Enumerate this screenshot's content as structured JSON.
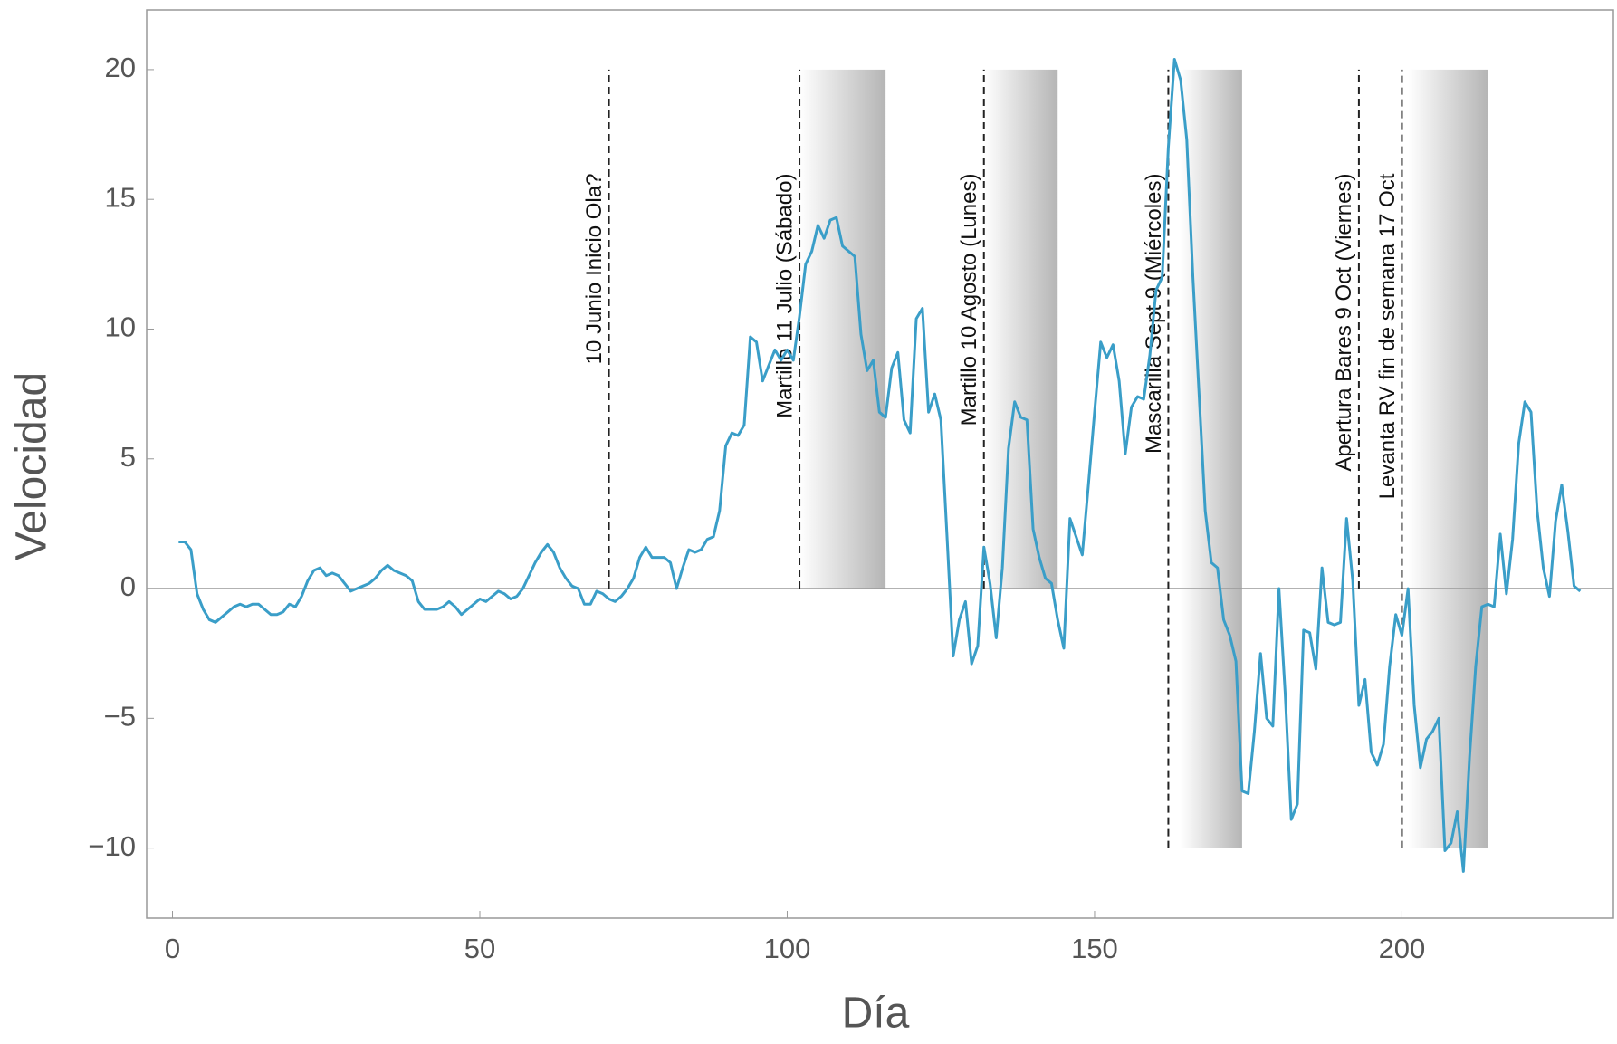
{
  "chart_data": {
    "type": "line",
    "xlabel": "Día",
    "ylabel": "Velocidad",
    "xlim": [
      -4.2,
      234.4
    ],
    "ylim": [
      -12.7,
      22.3
    ],
    "xticks": [
      0,
      50,
      100,
      150,
      200
    ],
    "yticks": [
      {
        "value": -10,
        "label": "−10"
      },
      {
        "value": -5,
        "label": "−5"
      },
      0,
      5,
      10,
      15,
      20
    ],
    "series": [
      {
        "color": "#3a9ec8",
        "x": [
          1,
          2,
          3,
          4,
          5,
          6,
          7,
          8,
          9,
          10,
          11,
          12,
          13,
          14,
          15,
          16,
          17,
          18,
          19,
          20,
          21,
          22,
          23,
          24,
          25,
          26,
          27,
          28,
          29,
          30,
          31,
          32,
          33,
          34,
          35,
          36,
          37,
          38,
          39,
          40,
          41,
          42,
          43,
          44,
          45,
          46,
          47,
          48,
          49,
          50,
          51,
          52,
          53,
          54,
          55,
          56,
          57,
          58,
          59,
          60,
          61,
          62,
          63,
          64,
          65,
          66,
          67,
          68,
          69,
          70,
          71,
          72,
          73,
          74,
          75,
          76,
          77,
          78,
          79,
          80,
          81,
          82,
          83,
          84,
          85,
          86,
          87,
          88,
          89,
          90,
          91,
          92,
          93,
          94,
          95,
          96,
          97,
          98,
          99,
          100,
          101,
          102,
          103,
          104,
          105,
          106,
          107,
          108,
          109,
          110,
          111,
          112,
          113,
          114,
          115,
          116,
          117,
          118,
          119,
          120,
          121,
          122,
          123,
          124,
          125,
          126,
          127,
          128,
          129,
          130,
          131,
          132,
          133,
          134,
          135,
          136,
          137,
          138,
          139,
          140,
          141,
          142,
          143,
          144,
          145,
          146,
          147,
          148,
          149,
          150,
          151,
          152,
          153,
          154,
          155,
          156,
          157,
          158,
          159,
          160,
          161,
          162,
          163,
          164,
          165,
          166,
          167,
          168,
          169,
          170,
          171,
          172,
          173,
          174,
          175,
          176,
          177,
          178,
          179,
          180,
          181,
          182,
          183,
          184,
          185,
          186,
          187,
          188,
          189,
          190,
          191,
          192,
          193,
          194,
          195,
          196,
          197,
          198,
          199,
          200,
          201,
          202,
          203,
          204,
          205,
          206,
          207,
          208,
          209,
          210,
          211,
          212,
          213,
          214,
          215,
          216,
          217,
          218,
          219,
          220,
          221,
          222,
          223,
          224,
          225,
          226,
          227,
          228,
          229
        ],
        "values": [
          1.8,
          1.8,
          1.5,
          -0.2,
          -0.8,
          -1.2,
          -1.3,
          -1.1,
          -0.9,
          -0.7,
          -0.6,
          -0.7,
          -0.6,
          -0.6,
          -0.8,
          -1.0,
          -1.0,
          -0.9,
          -0.6,
          -0.7,
          -0.3,
          0.3,
          0.7,
          0.8,
          0.5,
          0.6,
          0.5,
          0.2,
          -0.1,
          0,
          0.1,
          0.2,
          0.4,
          0.7,
          0.9,
          0.7,
          0.6,
          0.5,
          0.3,
          -0.5,
          -0.8,
          -0.8,
          -0.8,
          -0.7,
          -0.5,
          -0.7,
          -1.0,
          -0.8,
          -0.6,
          -0.4,
          -0.5,
          -0.3,
          -0.1,
          -0.2,
          -0.4,
          -0.3,
          0,
          0.5,
          1.0,
          1.4,
          1.7,
          1.4,
          0.8,
          0.4,
          0.1,
          0,
          -0.6,
          -0.6,
          -0.1,
          -0.2,
          -0.4,
          -0.5,
          -0.3,
          0,
          0.4,
          1.2,
          1.6,
          1.2,
          1.2,
          1.2,
          1.0,
          0,
          0.8,
          1.5,
          1.4,
          1.5,
          1.9,
          2.0,
          3.0,
          5.5,
          6.0,
          5.9,
          6.3,
          9.7,
          9.5,
          8.0,
          8.6,
          9.2,
          8.8,
          9.2,
          8.8,
          10.5,
          12.5,
          13.0,
          14.0,
          13.5,
          14.2,
          14.3,
          13.2,
          13.0,
          12.8,
          9.8,
          8.4,
          8.8,
          6.8,
          6.6,
          8.5,
          9.1,
          6.5,
          6.0,
          10.4,
          10.8,
          6.8,
          7.5,
          6.5,
          2.0,
          -2.6,
          -1.2,
          -0.5,
          -2.9,
          -2.2,
          1.6,
          0.2,
          -1.9,
          0.8,
          5.4,
          7.2,
          6.6,
          6.5,
          2.3,
          1.2,
          0.4,
          0.2,
          -1.2,
          -2.3,
          2.7,
          2.0,
          1.3,
          4.0,
          6.8,
          9.5,
          8.9,
          9.4,
          8.0,
          5.2,
          7.0,
          7.4,
          7.3,
          9.0,
          11.5,
          12.0,
          17.0,
          20.4,
          19.6,
          17.3,
          12.0,
          7.5,
          3.0,
          1.0,
          0.8,
          -1.2,
          -1.8,
          -2.8,
          -7.8,
          -7.9,
          -5.5,
          -2.5,
          -5.0,
          -5.3,
          0,
          -4.0,
          -8.9,
          -8.3,
          -1.6,
          -1.7,
          -3.1,
          0.8,
          -1.3,
          -1.4,
          -1.3,
          2.7,
          0.3,
          -4.5,
          -3.5,
          -6.3,
          -6.8,
          -6.0,
          -3.0,
          -1.0,
          -1.8,
          0,
          -4.5,
          -6.9,
          -5.8,
          -5.5,
          -5.0,
          -10.1,
          -9.8,
          -8.6,
          -10.9,
          -6.5,
          -3.0,
          -0.7,
          -0.6,
          -0.7,
          2.1,
          -0.2,
          1.9,
          5.6,
          7.2,
          6.8,
          3.0,
          0.8,
          -0.3,
          2.6,
          4.0,
          2.2,
          0.1,
          -0.1
        ]
      }
    ],
    "bands": [
      {
        "x": [
          102,
          116
        ],
        "y": [
          0,
          20
        ]
      },
      {
        "x": [
          132,
          144
        ],
        "y": [
          0,
          20
        ]
      },
      {
        "x": [
          164,
          174
        ],
        "y": [
          -10,
          20
        ]
      },
      {
        "x": [
          201,
          214
        ],
        "y": [
          -10,
          20
        ]
      }
    ],
    "events": [
      {
        "x": 71,
        "y": [
          0,
          20
        ],
        "label": "10 Junio Inicio Ola?"
      },
      {
        "x": 102,
        "y": [
          0,
          20
        ],
        "label": "Martillo 11 Julio  (Sábado)"
      },
      {
        "x": 132,
        "y": [
          0,
          20
        ],
        "label": "Martillo 10 Agosto  (Lunes)"
      },
      {
        "x": 162,
        "y": [
          -10,
          20
        ],
        "label": "Mascarilla Sept 9  (Miércoles)"
      },
      {
        "x": 193,
        "y": [
          0,
          20
        ],
        "label": "Apertura Bares 9 Oct  (Viernes)"
      },
      {
        "x": 200,
        "y": [
          -10,
          20
        ],
        "label": "Levanta RV fin de semana 17 Oct"
      }
    ]
  }
}
